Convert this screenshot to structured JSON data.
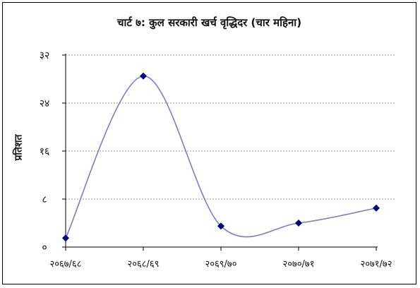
{
  "chart_data": {
    "type": "line",
    "title": "चार्ट ७: कुल सरकारी खर्च वृद्धिदर (चार महिना)",
    "ylabel": "प्रतिशत",
    "xlabel": "",
    "categories": [
      "२०६७/६८",
      "२०६८/६९",
      "२०६९/७०",
      "२०७०/७१",
      "२०७१/७२"
    ],
    "values": [
      1.5,
      28.5,
      3.5,
      4.0,
      6.5
    ],
    "y_ticks": [
      0,
      8,
      16,
      24,
      32
    ],
    "y_tick_labels": [
      "०",
      "८",
      "१६",
      "२४",
      "३२"
    ],
    "ylim": [
      0,
      32
    ],
    "grid": true,
    "smooth": true,
    "colors": {
      "line": "#7b7fb8",
      "marker": "#000080",
      "grid": "#9a9a9a"
    }
  }
}
